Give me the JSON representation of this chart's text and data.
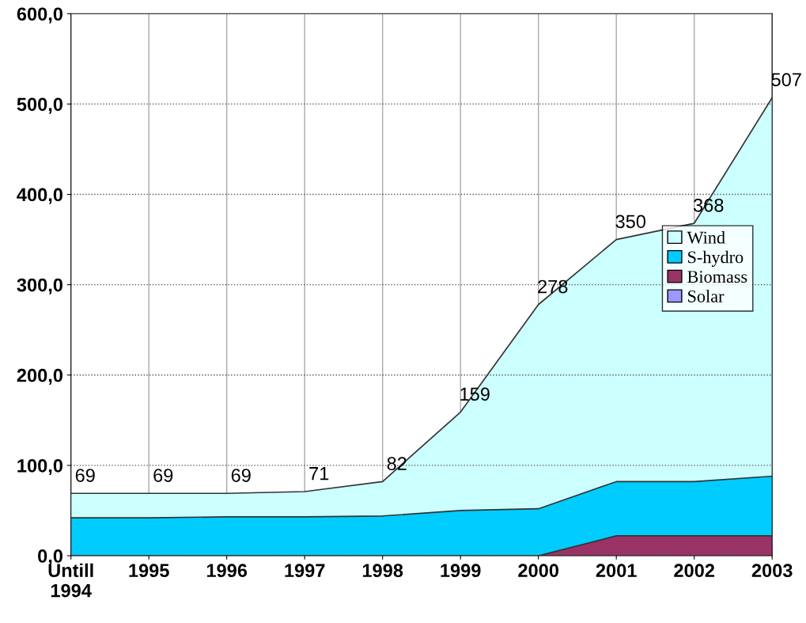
{
  "chart_data": {
    "type": "area",
    "stacked": true,
    "categories": [
      "Untill\n1994",
      "1995",
      "1996",
      "1997",
      "1998",
      "1999",
      "2000",
      "2001",
      "2002",
      "2003"
    ],
    "series": [
      {
        "name": "Solar",
        "color": "#9999ff",
        "values": [
          null,
          null,
          null,
          null,
          null,
          null,
          null,
          null,
          null,
          null
        ]
      },
      {
        "name": "Biomass",
        "color": "#993366",
        "values": [
          0,
          0,
          0,
          0,
          0,
          0,
          0,
          22,
          22,
          22
        ]
      },
      {
        "name": "S-hydro",
        "color": "#00ccff",
        "values": [
          42,
          42,
          43,
          43,
          44,
          50,
          52,
          60,
          60,
          66
        ]
      },
      {
        "name": "Wind",
        "color": "#ccffff",
        "values": [
          27,
          27,
          26,
          28,
          38,
          109,
          226,
          268,
          286,
          419
        ]
      }
    ],
    "totals": [
      "69",
      "69",
      "69",
      "71",
      "82",
      "159",
      "278",
      "350",
      "368",
      "507"
    ],
    "ylim": [
      0,
      600
    ],
    "yticks": [
      {
        "value": 0,
        "label": "0,0"
      },
      {
        "value": 100,
        "label": "100,0"
      },
      {
        "value": 200,
        "label": "200,0"
      },
      {
        "value": 300,
        "label": "300,0"
      },
      {
        "value": 400,
        "label": "400,0"
      },
      {
        "value": 500,
        "label": "500,0"
      },
      {
        "value": 600,
        "label": "600,0"
      }
    ],
    "grid": true,
    "legend": "right"
  }
}
